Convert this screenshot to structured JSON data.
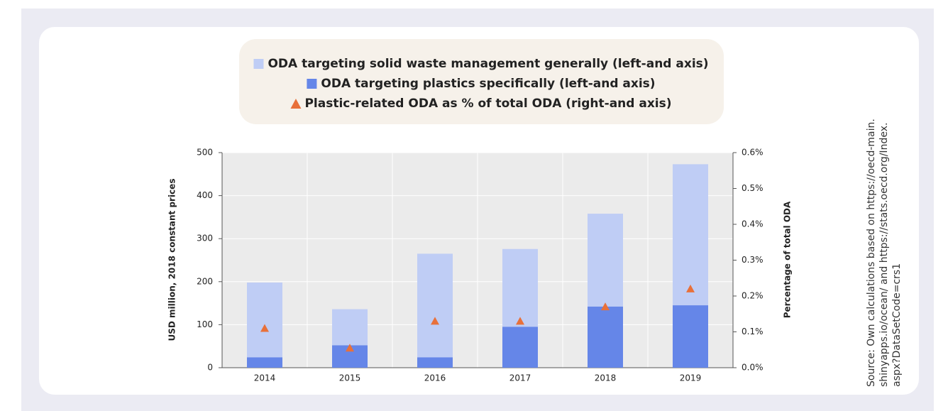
{
  "chart_data": {
    "type": "bar",
    "categories": [
      "2014",
      "2015",
      "2016",
      "2017",
      "2018",
      "2019"
    ],
    "series": [
      {
        "name": "ODA targeting solid waste management generally (left-and axis)",
        "color": "#bfcdf5",
        "values": [
          198,
          136,
          265,
          276,
          358,
          473
        ]
      },
      {
        "name": "ODA targeting plastics specifically (left-and axis)",
        "color": "#6586e8",
        "values": [
          24,
          52,
          24,
          95,
          142,
          145
        ]
      },
      {
        "name": "Plastic-related ODA as % of total ODA (right-and axis)",
        "color": "#e8703a",
        "axis": "y2",
        "marker": "triangle",
        "values": [
          0.11,
          0.055,
          0.13,
          0.13,
          0.17,
          0.22
        ]
      }
    ],
    "ylabel": "USD million, 2018 constant prices",
    "y2label": "Percentage of total ODA",
    "ylim": [
      0,
      500
    ],
    "yticks": [
      0,
      100,
      200,
      300,
      400,
      500
    ],
    "y2lim": [
      0,
      0.6
    ],
    "y2ticks": [
      {
        "value": 0,
        "label": "0.0%"
      },
      {
        "value": 0.1,
        "label": "0.1%"
      },
      {
        "value": 0.2,
        "label": "0.2%"
      },
      {
        "value": 0.3,
        "label": "0.3%"
      },
      {
        "value": 0.4,
        "label": "0.4%"
      },
      {
        "value": 0.5,
        "label": "0.5%"
      },
      {
        "value": 0.6,
        "label": "0.6%"
      }
    ],
    "grid": true,
    "source": [
      "Source: Own calculations based on https://oecd-main.",
      "shinyapps.io/ocean/ and https://stats.oecd.org/Index.",
      "aspx?DataSetCode=crs1"
    ]
  }
}
